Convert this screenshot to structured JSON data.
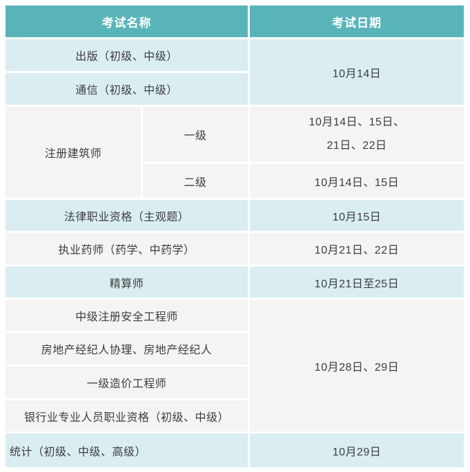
{
  "table": {
    "columns": [
      "考试名称",
      "考试日期"
    ],
    "groups": [
      {
        "exams": [
          "出版（初级、中级）",
          "通信（初级、中级）"
        ],
        "date": "10月14日"
      },
      {
        "group": "注册建筑师",
        "subs": [
          {
            "level": "一级",
            "date_lines": [
              "10月14日、15日、",
              "21日、22日"
            ]
          },
          {
            "level": "二级",
            "date": "10月14日、15日"
          }
        ]
      },
      {
        "exam": "法律职业资格（主观题）",
        "date": "10月15日"
      },
      {
        "exam": "执业药师（药学、中药学）",
        "date": "10月21日、22日"
      },
      {
        "exam": "精算师",
        "date": "10月21日至25日"
      },
      {
        "exams": [
          "中级注册安全工程师",
          "房地产经纪人协理、房地产经纪人",
          "一级造价工程师",
          "银行业专业人员职业资格（初级、中级）"
        ],
        "date": "10月28日、29日"
      },
      {
        "exam": "统计（初级、中级、高级）",
        "date": "10月29日"
      }
    ]
  },
  "colors": {
    "header_bg": "#59b4ba",
    "header_text": "#ffffff",
    "row_light_blue": "#daeef1",
    "row_off_white": "#f5f4f3",
    "divider": "#ffffff",
    "body_text": "#3c3c3c"
  }
}
